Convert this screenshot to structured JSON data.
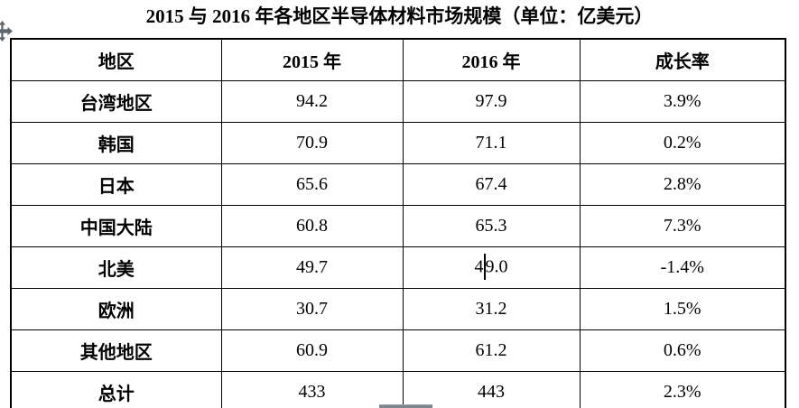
{
  "document": {
    "title": "2015 与 2016 年各地区半导体材料市场规模（单位：亿美元）"
  },
  "table": {
    "headers": {
      "region": "地区",
      "y2015": "2015 年",
      "y2016": "2016 年",
      "growth": "成长率"
    },
    "rows": [
      {
        "region": "台湾地区",
        "y2015": "94.2",
        "y2016": "97.9",
        "growth": "3.9%"
      },
      {
        "region": "韩国",
        "y2015": "70.9",
        "y2016": "71.1",
        "growth": "0.2%"
      },
      {
        "region": "日本",
        "y2015": "65.6",
        "y2016": "67.4",
        "growth": "2.8%"
      },
      {
        "region": "中国大陆",
        "y2015": "60.8",
        "y2016": "65.3",
        "growth": "7.3%"
      },
      {
        "region": "北美",
        "y2015": "49.7",
        "y2016": "49.0",
        "growth": "-1.4%"
      },
      {
        "region": "欧洲",
        "y2015": "30.7",
        "y2016": "31.2",
        "growth": "1.5%"
      },
      {
        "region": "其他地区",
        "y2015": "60.9",
        "y2016": "61.2",
        "growth": "0.6%"
      },
      {
        "region": "总计",
        "y2015": "433",
        "y2016": "443",
        "growth": "2.3%"
      }
    ],
    "caret": {
      "row_index": 4,
      "column": "y2016",
      "after_chars": 1
    }
  },
  "icons": {
    "table_move_handle": "four-way-move-arrows",
    "scrollbar_thumb": "horizontal-scrollbar-thumb"
  },
  "colors": {
    "text": "#000000",
    "border": "#000000",
    "background": "#ffffff",
    "handle_gray": "#5d6670",
    "scrollbar_gray": "#7e868d"
  }
}
